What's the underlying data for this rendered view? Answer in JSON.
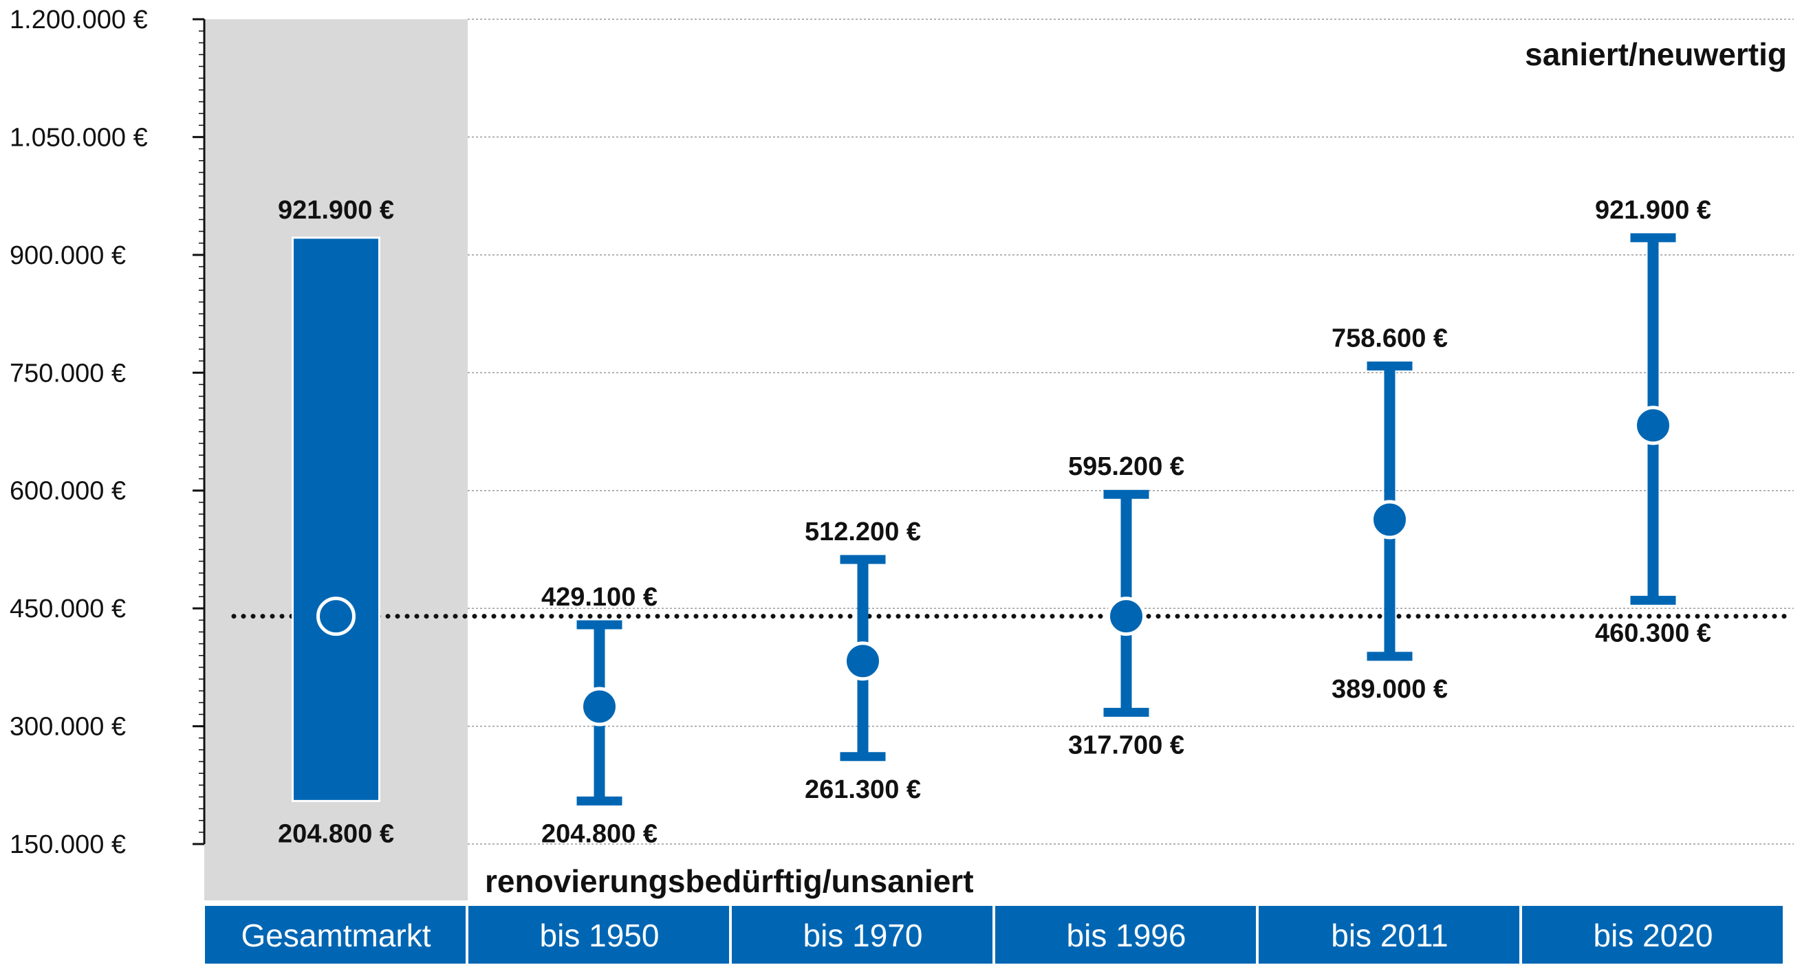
{
  "chart_data": {
    "type": "range",
    "y_ticks": [
      "1.200.000 €",
      "1.050.000 €",
      "900.000 €",
      "750.000 €",
      "600.000 €",
      "450.000 €",
      "300.000 €",
      "150.000 €"
    ],
    "y_tick_values": [
      1200000,
      1050000,
      900000,
      750000,
      600000,
      450000,
      300000,
      150000
    ],
    "ylim": [
      150000,
      1200000
    ],
    "grid": true,
    "reference_line": 440000,
    "top_note": "saniert/neuwertig",
    "bottom_note": "renovierungsbedürftig/unsaniert",
    "categories": [
      "Gesamtmarkt",
      "bis 1950",
      "bis 1970",
      "bis 1996",
      "bis 2011",
      "bis 2020"
    ],
    "ranges": [
      {
        "category": "Gesamtmarkt",
        "min": 204800,
        "max": 921900,
        "median": 440000,
        "min_label": "204.800 €",
        "max_label": "921.900 €"
      },
      {
        "category": "bis 1950",
        "min": 204800,
        "max": 429100,
        "median": 325000,
        "min_label": "204.800 €",
        "max_label": "429.100 €"
      },
      {
        "category": "bis 1970",
        "min": 261300,
        "max": 512200,
        "median": 383000,
        "min_label": "261.300 €",
        "max_label": "512.200 €"
      },
      {
        "category": "bis 1996",
        "min": 317700,
        "max": 595200,
        "median": 440000,
        "min_label": "317.700 €",
        "max_label": "595.200 €"
      },
      {
        "category": "bis 2011",
        "min": 389000,
        "max": 758600,
        "median": 563000,
        "min_label": "389.000 €",
        "max_label": "758.600 €"
      },
      {
        "category": "bis 2020",
        "min": 460300,
        "max": 921900,
        "median": 683000,
        "min_label": "460.300 €",
        "max_label": "921.900 €"
      }
    ],
    "colors": {
      "accent": "#0066b3",
      "shade": "#d9d9d9",
      "grid": "#9a9a9a"
    }
  }
}
